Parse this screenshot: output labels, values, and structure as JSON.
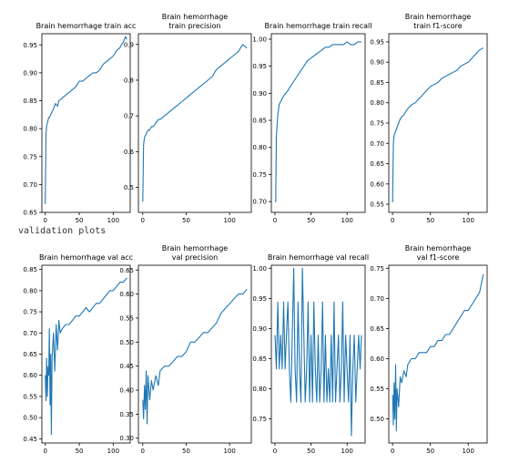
{
  "section_label": "validation plots",
  "line_color": "#1f77b4",
  "chart_data": [
    {
      "type": "line",
      "title_lines": [
        "Brain hemorrhage train acc"
      ],
      "x_ticks": [
        0,
        50,
        100
      ],
      "xlim": [
        -5,
        125
      ],
      "ylim": [
        0.65,
        0.97
      ],
      "y_ticks": [
        "0.65",
        "0.70",
        "0.75",
        "0.80",
        "0.85",
        "0.90",
        "0.95"
      ],
      "series": [
        {
          "x": [
            0,
            1,
            2,
            3,
            4,
            5,
            6,
            8,
            10,
            12,
            15,
            18,
            20,
            25,
            30,
            35,
            40,
            45,
            50,
            55,
            60,
            65,
            70,
            75,
            80,
            85,
            90,
            95,
            100,
            105,
            110,
            112,
            115,
            118,
            120
          ],
          "y": [
            0.665,
            0.79,
            0.805,
            0.81,
            0.815,
            0.82,
            0.82,
            0.825,
            0.83,
            0.835,
            0.845,
            0.84,
            0.85,
            0.855,
            0.86,
            0.865,
            0.87,
            0.875,
            0.885,
            0.885,
            0.89,
            0.895,
            0.9,
            0.9,
            0.905,
            0.915,
            0.92,
            0.925,
            0.93,
            0.94,
            0.945,
            0.95,
            0.955,
            0.965,
            0.96
          ]
        }
      ]
    },
    {
      "type": "line",
      "title_lines": [
        "Brain hemorrhage",
        "train precision"
      ],
      "x_ticks": [
        0,
        50,
        100
      ],
      "xlim": [
        -5,
        125
      ],
      "ylim": [
        0.43,
        0.93
      ],
      "y_ticks": [
        "0.5",
        "0.6",
        "0.7",
        "0.8",
        "0.9"
      ],
      "series": [
        {
          "x": [
            0,
            1,
            2,
            4,
            6,
            8,
            10,
            12,
            15,
            18,
            20,
            25,
            30,
            35,
            40,
            45,
            50,
            55,
            60,
            65,
            70,
            75,
            80,
            85,
            90,
            95,
            100,
            105,
            110,
            115,
            120
          ],
          "y": [
            0.46,
            0.62,
            0.64,
            0.65,
            0.66,
            0.66,
            0.67,
            0.67,
            0.68,
            0.69,
            0.69,
            0.7,
            0.71,
            0.72,
            0.73,
            0.74,
            0.75,
            0.76,
            0.77,
            0.78,
            0.79,
            0.8,
            0.81,
            0.83,
            0.84,
            0.85,
            0.86,
            0.87,
            0.88,
            0.9,
            0.89
          ]
        }
      ]
    },
    {
      "type": "line",
      "title_lines": [
        "Brain hemorrhage train recall"
      ],
      "x_ticks": [
        0,
        50,
        100
      ],
      "xlim": [
        -5,
        125
      ],
      "ylim": [
        0.68,
        1.01
      ],
      "y_ticks": [
        "0.70",
        "0.75",
        "0.80",
        "0.85",
        "0.90",
        "0.95",
        "1.00"
      ],
      "series": [
        {
          "x": [
            0,
            1,
            2,
            3,
            4,
            5,
            6,
            8,
            10,
            12,
            15,
            18,
            20,
            25,
            30,
            35,
            40,
            45,
            50,
            55,
            60,
            65,
            70,
            75,
            80,
            85,
            90,
            95,
            100,
            105,
            110,
            115,
            120
          ],
          "y": [
            0.7,
            0.7,
            0.82,
            0.84,
            0.86,
            0.87,
            0.88,
            0.885,
            0.89,
            0.895,
            0.9,
            0.905,
            0.91,
            0.92,
            0.93,
            0.94,
            0.95,
            0.96,
            0.965,
            0.97,
            0.975,
            0.98,
            0.985,
            0.985,
            0.99,
            0.99,
            0.99,
            0.99,
            0.995,
            0.99,
            0.99,
            0.995,
            0.995
          ]
        }
      ]
    },
    {
      "type": "line",
      "title_lines": [
        "Brain hemorrhage",
        "train f1-score"
      ],
      "x_ticks": [
        0,
        50,
        100
      ],
      "xlim": [
        -5,
        125
      ],
      "ylim": [
        0.53,
        0.97
      ],
      "y_ticks": [
        "0.55",
        "0.60",
        "0.65",
        "0.70",
        "0.75",
        "0.80",
        "0.85",
        "0.90",
        "0.95"
      ],
      "series": [
        {
          "x": [
            0,
            1,
            2,
            4,
            6,
            8,
            10,
            12,
            15,
            18,
            20,
            25,
            30,
            35,
            40,
            45,
            50,
            55,
            60,
            65,
            70,
            75,
            80,
            85,
            90,
            95,
            100,
            105,
            110,
            115,
            120
          ],
          "y": [
            0.555,
            0.7,
            0.72,
            0.73,
            0.74,
            0.75,
            0.76,
            0.765,
            0.77,
            0.78,
            0.785,
            0.795,
            0.8,
            0.81,
            0.82,
            0.83,
            0.84,
            0.845,
            0.85,
            0.86,
            0.865,
            0.87,
            0.875,
            0.88,
            0.89,
            0.895,
            0.9,
            0.91,
            0.92,
            0.93,
            0.935
          ]
        }
      ]
    },
    {
      "type": "line",
      "title_lines": [
        "Brain hemorrhage val acc"
      ],
      "x_ticks": [
        0,
        50,
        100
      ],
      "xlim": [
        -5,
        125
      ],
      "ylim": [
        0.44,
        0.86
      ],
      "y_ticks": [
        "0.45",
        "0.50",
        "0.55",
        "0.60",
        "0.65",
        "0.70",
        "0.75",
        "0.80",
        "0.85"
      ],
      "series": [
        {
          "x": [
            0,
            1,
            2,
            3,
            4,
            5,
            6,
            7,
            8,
            9,
            10,
            12,
            14,
            16,
            18,
            20,
            22,
            25,
            30,
            35,
            40,
            45,
            50,
            55,
            60,
            65,
            70,
            75,
            80,
            85,
            90,
            95,
            100,
            105,
            110,
            115,
            120
          ],
          "y": [
            0.6,
            0.54,
            0.64,
            0.55,
            0.62,
            0.6,
            0.71,
            0.53,
            0.65,
            0.46,
            0.64,
            0.7,
            0.61,
            0.72,
            0.66,
            0.73,
            0.7,
            0.71,
            0.72,
            0.72,
            0.73,
            0.74,
            0.74,
            0.75,
            0.76,
            0.75,
            0.76,
            0.77,
            0.77,
            0.78,
            0.79,
            0.8,
            0.8,
            0.81,
            0.82,
            0.82,
            0.83
          ]
        }
      ]
    },
    {
      "type": "line",
      "title_lines": [
        "Brain hemorrhage",
        "val precision"
      ],
      "x_ticks": [
        0,
        50,
        100
      ],
      "xlim": [
        -5,
        125
      ],
      "ylim": [
        0.29,
        0.66
      ],
      "y_ticks": [
        "0.30",
        "0.35",
        "0.40",
        "0.45",
        "0.50",
        "0.55",
        "0.60",
        "0.65"
      ],
      "series": [
        {
          "x": [
            0,
            1,
            2,
            3,
            4,
            5,
            6,
            8,
            10,
            12,
            15,
            18,
            20,
            25,
            30,
            35,
            40,
            45,
            50,
            55,
            60,
            65,
            70,
            75,
            80,
            85,
            90,
            95,
            100,
            105,
            110,
            115,
            120
          ],
          "y": [
            0.38,
            0.34,
            0.41,
            0.36,
            0.44,
            0.33,
            0.43,
            0.38,
            0.42,
            0.4,
            0.43,
            0.41,
            0.44,
            0.45,
            0.45,
            0.46,
            0.47,
            0.47,
            0.48,
            0.5,
            0.5,
            0.51,
            0.52,
            0.52,
            0.53,
            0.54,
            0.56,
            0.57,
            0.58,
            0.59,
            0.6,
            0.6,
            0.61
          ]
        }
      ]
    },
    {
      "type": "line",
      "title_lines": [
        "Brain hemorrhage val recall"
      ],
      "x_ticks": [
        0,
        50,
        100
      ],
      "xlim": [
        -5,
        125
      ],
      "ylim": [
        0.71,
        1.005
      ],
      "y_ticks": [
        "0.75",
        "0.80",
        "0.85",
        "0.90",
        "0.95",
        "1.00"
      ],
      "series": [
        {
          "x": [
            0,
            2,
            4,
            6,
            8,
            10,
            12,
            14,
            16,
            18,
            20,
            22,
            24,
            26,
            28,
            30,
            32,
            34,
            36,
            38,
            40,
            42,
            44,
            46,
            48,
            50,
            52,
            54,
            56,
            58,
            60,
            62,
            64,
            66,
            68,
            70,
            72,
            74,
            76,
            78,
            80,
            82,
            84,
            86,
            88,
            90,
            92,
            94,
            96,
            98,
            100,
            102,
            104,
            106,
            108,
            110,
            112,
            114,
            116,
            118,
            120
          ],
          "y": [
            0.889,
            0.833,
            0.944,
            0.833,
            0.889,
            0.833,
            0.944,
            0.833,
            0.889,
            0.944,
            0.833,
            0.778,
            0.889,
            1.0,
            0.833,
            0.778,
            0.944,
            0.833,
            0.778,
            1.0,
            0.889,
            0.778,
            0.833,
            0.944,
            0.778,
            0.889,
            0.778,
            0.944,
            0.833,
            0.778,
            0.889,
            0.778,
            0.833,
            0.944,
            0.778,
            0.889,
            0.778,
            0.833,
            0.778,
            0.889,
            0.778,
            0.944,
            0.778,
            0.833,
            0.889,
            0.778,
            0.833,
            0.944,
            0.778,
            0.889,
            0.833,
            0.778,
            0.889,
            0.722,
            0.833,
            0.889,
            0.778,
            0.833,
            0.889,
            0.833,
            0.889
          ]
        }
      ]
    },
    {
      "type": "line",
      "title_lines": [
        "Brain hemorrhage",
        "val f1-score"
      ],
      "x_ticks": [
        0,
        50,
        100
      ],
      "xlim": [
        -5,
        125
      ],
      "ylim": [
        0.46,
        0.755
      ],
      "y_ticks": [
        "0.50",
        "0.55",
        "0.60",
        "0.65",
        "0.70",
        "0.75"
      ],
      "series": [
        {
          "x": [
            0,
            1,
            2,
            3,
            4,
            5,
            6,
            8,
            10,
            12,
            15,
            18,
            20,
            25,
            30,
            35,
            40,
            45,
            50,
            55,
            60,
            65,
            70,
            75,
            80,
            85,
            90,
            95,
            100,
            105,
            110,
            115,
            120
          ],
          "y": [
            0.54,
            0.49,
            0.56,
            0.5,
            0.59,
            0.48,
            0.55,
            0.52,
            0.57,
            0.56,
            0.58,
            0.57,
            0.59,
            0.6,
            0.6,
            0.61,
            0.61,
            0.61,
            0.62,
            0.62,
            0.63,
            0.63,
            0.64,
            0.64,
            0.65,
            0.66,
            0.67,
            0.68,
            0.68,
            0.69,
            0.7,
            0.71,
            0.74
          ]
        }
      ]
    }
  ]
}
